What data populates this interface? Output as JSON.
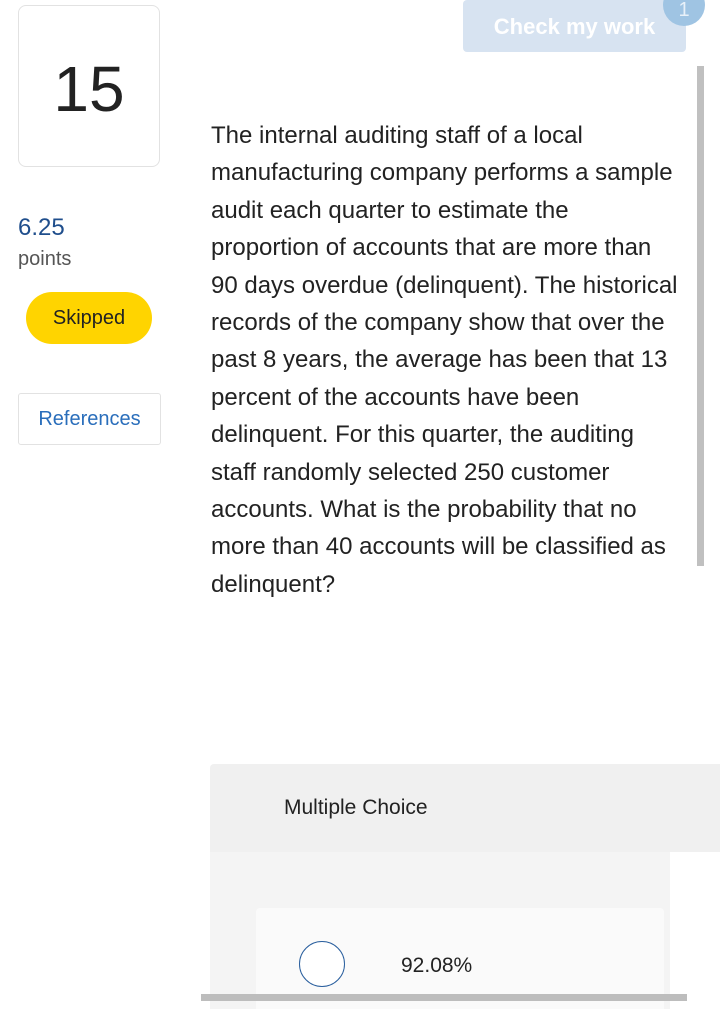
{
  "question_number": "15",
  "points": {
    "value": "6.25",
    "label": "points"
  },
  "status_badge": "Skipped",
  "references_label": "References",
  "check_my_work": {
    "label": "Check my work",
    "count": "1"
  },
  "question_text": "The internal auditing staff of a local manufacturing company performs a sample audit each quarter to estimate the proportion of accounts that are more than 90 days overdue (delinquent). The historical records of the company show that over the past 8 years, the average has been that 13 percent of the accounts have been delinquent. For this quarter, the auditing staff randomly selected 250 customer accounts. What is the probability that no more than 40 accounts will be classified as delinquent?",
  "multiple_choice": {
    "title": "Multiple Choice",
    "options": [
      {
        "label": "92.08%",
        "selected": false
      }
    ]
  },
  "colors": {
    "accent": "#2a6ebb",
    "skipped": "#ffd400",
    "points": "#1f4e8c"
  }
}
